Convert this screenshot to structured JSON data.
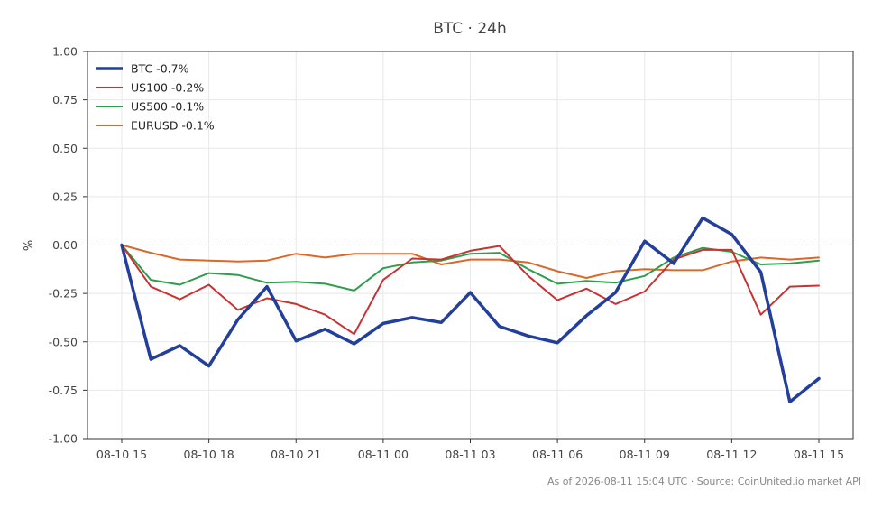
{
  "chart_data": {
    "type": "line",
    "title": "BTC · 24h",
    "xlabel": "",
    "ylabel": "%",
    "ylim": [
      -1.0,
      1.0
    ],
    "yticks": [
      "1.00",
      "0.75",
      "0.50",
      "0.25",
      "0.00",
      "-0.25",
      "-0.50",
      "-0.75",
      "-1.00"
    ],
    "ytick_values": [
      1.0,
      0.75,
      0.5,
      0.25,
      0.0,
      -0.25,
      -0.5,
      -0.75,
      -1.0
    ],
    "x": [
      "08-10 15",
      "08-10 16",
      "08-10 17",
      "08-10 18",
      "08-10 19",
      "08-10 20",
      "08-10 21",
      "08-10 22",
      "08-10 23",
      "08-11 00",
      "08-11 01",
      "08-11 02",
      "08-11 03",
      "08-11 04",
      "08-11 05",
      "08-11 06",
      "08-11 07",
      "08-11 08",
      "08-11 09",
      "08-11 10",
      "08-11 11",
      "08-11 12",
      "08-11 13",
      "08-11 14",
      "08-11 15"
    ],
    "xticks": [
      "08-10 15",
      "08-10 18",
      "08-10 21",
      "08-11 00",
      "08-11 03",
      "08-11 06",
      "08-11 09",
      "08-11 12",
      "08-11 15"
    ],
    "xtick_index": [
      0,
      3,
      6,
      9,
      12,
      15,
      18,
      21,
      24
    ],
    "grid": true,
    "legend_position": "top-left",
    "zero_line": true,
    "series": [
      {
        "name": "BTC -0.7%",
        "color": "#233f9c",
        "width": 3.5,
        "values": [
          0.0,
          -0.59,
          -0.52,
          -0.625,
          -0.385,
          -0.215,
          -0.495,
          -0.435,
          -0.51,
          -0.405,
          -0.375,
          -0.4,
          -0.245,
          -0.42,
          -0.47,
          -0.505,
          -0.365,
          -0.245,
          0.02,
          -0.095,
          0.14,
          0.055,
          -0.14,
          -0.81,
          -0.69
        ]
      },
      {
        "name": "US100 -0.2%",
        "color": "#c83232",
        "width": 2,
        "values": [
          0.0,
          -0.215,
          -0.28,
          -0.205,
          -0.335,
          -0.275,
          -0.305,
          -0.36,
          -0.46,
          -0.18,
          -0.07,
          -0.075,
          -0.03,
          -0.005,
          -0.16,
          -0.285,
          -0.225,
          -0.305,
          -0.24,
          -0.075,
          -0.025,
          -0.025,
          -0.36,
          -0.215,
          -0.21
        ]
      },
      {
        "name": "US500 -0.1%",
        "color": "#2e9e4c",
        "width": 2,
        "values": [
          0.0,
          -0.18,
          -0.205,
          -0.145,
          -0.155,
          -0.195,
          -0.19,
          -0.2,
          -0.235,
          -0.12,
          -0.09,
          -0.08,
          -0.045,
          -0.04,
          -0.125,
          -0.2,
          -0.185,
          -0.195,
          -0.16,
          -0.065,
          -0.015,
          -0.035,
          -0.1,
          -0.095,
          -0.08
        ]
      },
      {
        "name": "EURUSD -0.1%",
        "color": "#d9692a",
        "width": 2,
        "values": [
          0.0,
          -0.04,
          -0.075,
          -0.08,
          -0.085,
          -0.08,
          -0.045,
          -0.065,
          -0.045,
          -0.045,
          -0.045,
          -0.1,
          -0.075,
          -0.075,
          -0.09,
          -0.135,
          -0.17,
          -0.135,
          -0.125,
          -0.13,
          -0.13,
          -0.085,
          -0.065,
          -0.075,
          -0.065
        ]
      }
    ]
  },
  "footer": "As of 2026-08-11 15:04 UTC · Source: CoinUnited.io market API"
}
